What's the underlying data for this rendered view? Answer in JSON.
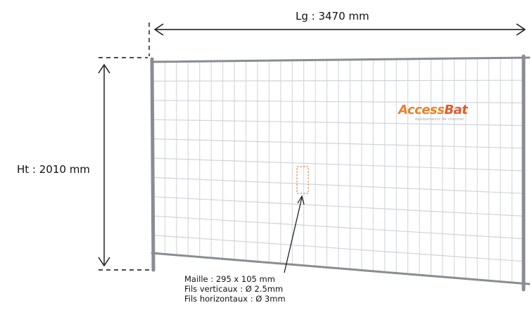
{
  "dimensions": {
    "length_label": "Lg : 3470 mm",
    "height_label": "Ht : 2010 mm"
  },
  "specs": {
    "mesh": "Maille  : 295 x 105 mm",
    "vertical_wires": "Fils verticaux : Ø 2.5mm",
    "horizontal_wires": "Fils horizontaux : Ø 3mm"
  },
  "logo": {
    "brand_part1": "Access",
    "brand_part2": "Bat",
    "tagline": "équipements de chantier"
  },
  "colors": {
    "frame": "#8a8c94",
    "mesh": "#cfd3da",
    "highlight_cell": "#e8662a",
    "brand_orange": "#e8832a",
    "dimension_line": "#111111"
  }
}
